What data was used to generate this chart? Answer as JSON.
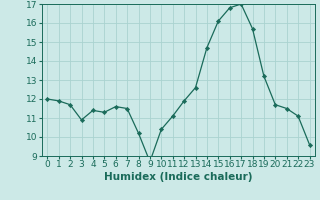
{
  "x": [
    0,
    1,
    2,
    3,
    4,
    5,
    6,
    7,
    8,
    9,
    10,
    11,
    12,
    13,
    14,
    15,
    16,
    17,
    18,
    19,
    20,
    21,
    22,
    23
  ],
  "y": [
    12.0,
    11.9,
    11.7,
    10.9,
    11.4,
    11.3,
    11.6,
    11.5,
    10.2,
    8.7,
    10.4,
    11.1,
    11.9,
    12.6,
    14.7,
    16.1,
    16.8,
    17.0,
    15.7,
    13.2,
    11.7,
    11.5,
    11.1,
    9.6
  ],
  "xlabel": "Humidex (Indice chaleur)",
  "ylim": [
    9,
    17
  ],
  "xlim": [
    -0.5,
    23.5
  ],
  "yticks": [
    9,
    10,
    11,
    12,
    13,
    14,
    15,
    16,
    17
  ],
  "xticks": [
    0,
    1,
    2,
    3,
    4,
    5,
    6,
    7,
    8,
    9,
    10,
    11,
    12,
    13,
    14,
    15,
    16,
    17,
    18,
    19,
    20,
    21,
    22,
    23
  ],
  "line_color": "#1a6b5a",
  "marker_color": "#1a6b5a",
  "bg_color": "#cce9e7",
  "grid_color": "#aad3d0",
  "tick_color": "#1a6b5a",
  "label_color": "#1a6b5a",
  "font_size": 6.5,
  "xlabel_fontsize": 7.5
}
